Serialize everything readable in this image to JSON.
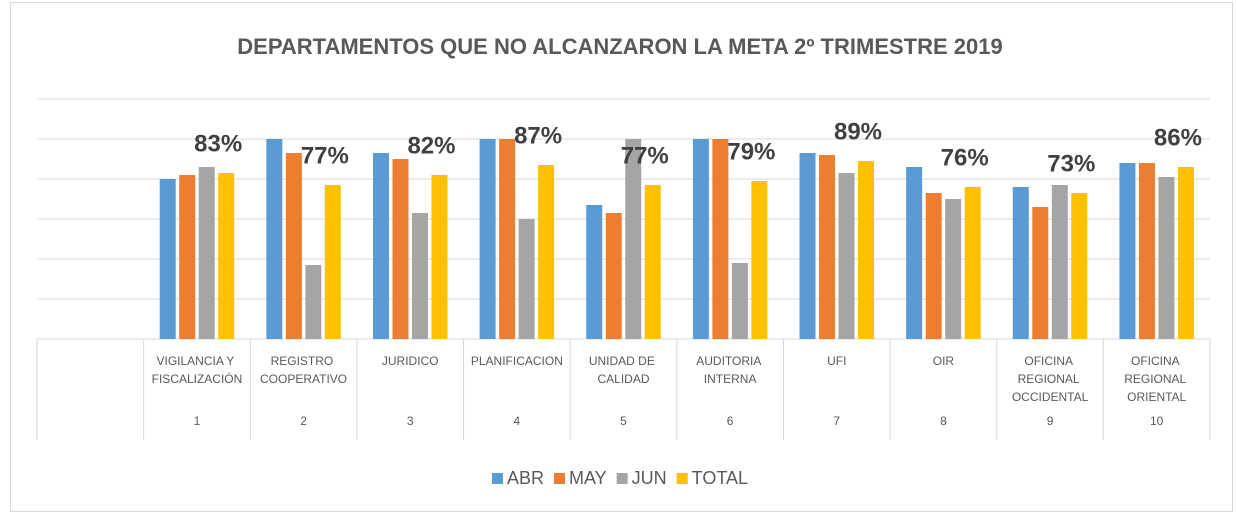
{
  "chart_data": {
    "type": "bar",
    "title": "DEPARTAMENTOS QUE NO ALCANZARON LA META 2º TRIMESTRE 2019",
    "categories": [
      null,
      "VIGILANCIA Y FISCALIZACIÓN",
      "REGISTRO COOPERATIVO",
      "JURIDICO",
      "PLANIFICACION",
      "UNIDAD DE CALIDAD",
      "AUDITORIA INTERNA",
      "UFI",
      "OIR",
      "OFICINA REGIONAL OCCIDENTAL",
      "OFICINA REGIONAL ORIENTAL"
    ],
    "category_groups": [
      null,
      "1",
      "2",
      "3",
      "4",
      "5",
      "6",
      "7",
      "8",
      "9",
      "10"
    ],
    "series": [
      {
        "name": "ABR",
        "color": "#5b9bd5",
        "values": [
          null,
          80,
          100,
          93,
          100,
          67,
          100,
          93,
          86,
          76,
          88
        ]
      },
      {
        "name": "MAY",
        "color": "#ed7d31",
        "values": [
          null,
          82,
          93,
          90,
          100,
          63,
          100,
          92,
          73,
          66,
          88
        ]
      },
      {
        "name": "JUN",
        "color": "#a5a5a5",
        "values": [
          null,
          86,
          37,
          63,
          60,
          100,
          38,
          83,
          70,
          77,
          81
        ]
      },
      {
        "name": "TOTAL",
        "color": "#ffc000",
        "values": [
          null,
          83,
          77,
          82,
          87,
          77,
          79,
          89,
          76,
          73,
          86
        ],
        "value_labels": [
          null,
          "83%",
          "77%",
          "82%",
          "87%",
          "77%",
          "79%",
          "89%",
          "76%",
          "73%",
          "86%"
        ]
      }
    ],
    "ylim": [
      0,
      120
    ],
    "yticks": [
      0,
      20,
      40,
      60,
      80,
      100,
      120
    ],
    "grid": true,
    "legend": "bottom"
  }
}
